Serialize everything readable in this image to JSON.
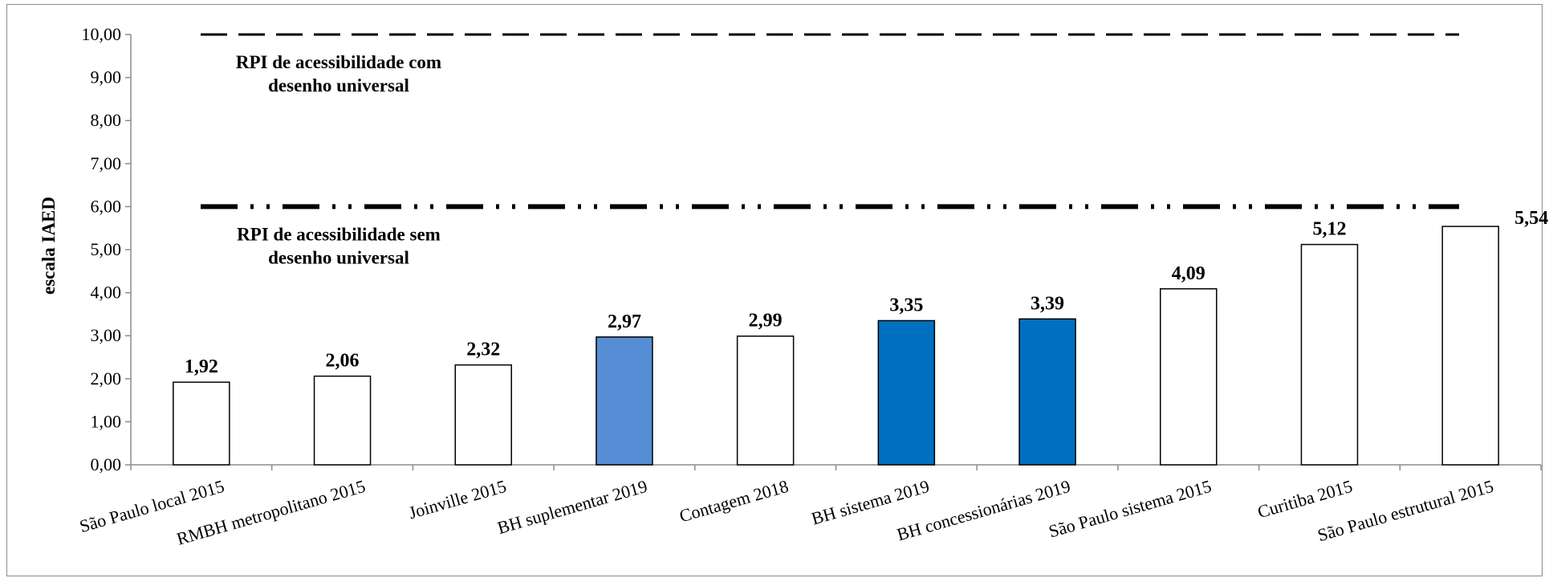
{
  "chart_data": {
    "type": "bar",
    "ylabel": "escala IAED",
    "ylim": [
      0,
      10
    ],
    "yticks": [
      "0,00",
      "1,00",
      "2,00",
      "3,00",
      "4,00",
      "5,00",
      "6,00",
      "7,00",
      "8,00",
      "9,00",
      "10,00"
    ],
    "categories": [
      "São Paulo local 2015",
      "RMBH metropolitano 2015",
      "Joinville 2015",
      "BH suplementar 2019",
      "Contagem 2018",
      "BH sistema 2019",
      "BH concessionárias 2019",
      "São Paulo sistema 2015",
      "Curitiba 2015",
      "São Paulo estrutural 2015"
    ],
    "values": [
      1.92,
      2.06,
      2.32,
      2.97,
      2.99,
      3.35,
      3.39,
      4.09,
      5.12,
      5.54
    ],
    "value_labels": [
      "1,92",
      "2,06",
      "2,32",
      "2,97",
      "2,99",
      "3,35",
      "3,39",
      "4,09",
      "5,12",
      "5,54"
    ],
    "bar_colors": [
      "#ffffff",
      "#ffffff",
      "#ffffff",
      "#558ed5",
      "#ffffff",
      "#0070c0",
      "#0070c0",
      "#ffffff",
      "#ffffff",
      "#ffffff"
    ],
    "reference_lines": [
      {
        "value": 10,
        "label_lines": [
          "RPI de acessibilidade com",
          "desenho universal"
        ],
        "style": "dashed"
      },
      {
        "value": 6,
        "label_lines": [
          "RPI de acessibilidade sem",
          "desenho universal"
        ],
        "style": "dash-dot-dot"
      }
    ],
    "grid": false,
    "legend": "none"
  }
}
